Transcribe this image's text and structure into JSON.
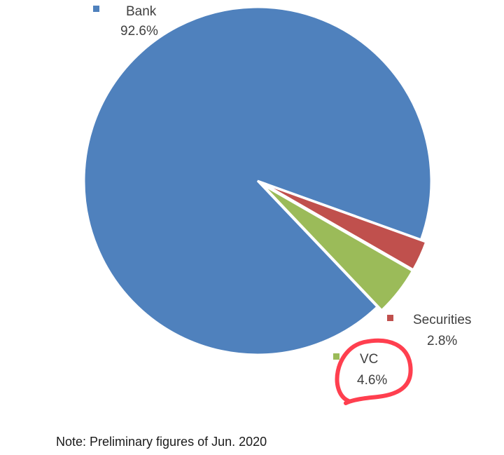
{
  "chart_data": {
    "type": "pie",
    "slices": [
      {
        "label": "Bank",
        "value": 92.6,
        "value_label": "92.6%",
        "color": "#4f81bd"
      },
      {
        "label": "Securities",
        "value": 2.8,
        "value_label": "2.8%",
        "color": "#c0504d"
      },
      {
        "label": "VC",
        "value": 4.6,
        "value_label": "4.6%",
        "color": "#9bbb59"
      }
    ],
    "annotation": {
      "target": "VC",
      "shape": "hand-drawn circle",
      "color": "#ff2a3c"
    }
  },
  "note": "Note: Preliminary figures of Jun. 2020"
}
